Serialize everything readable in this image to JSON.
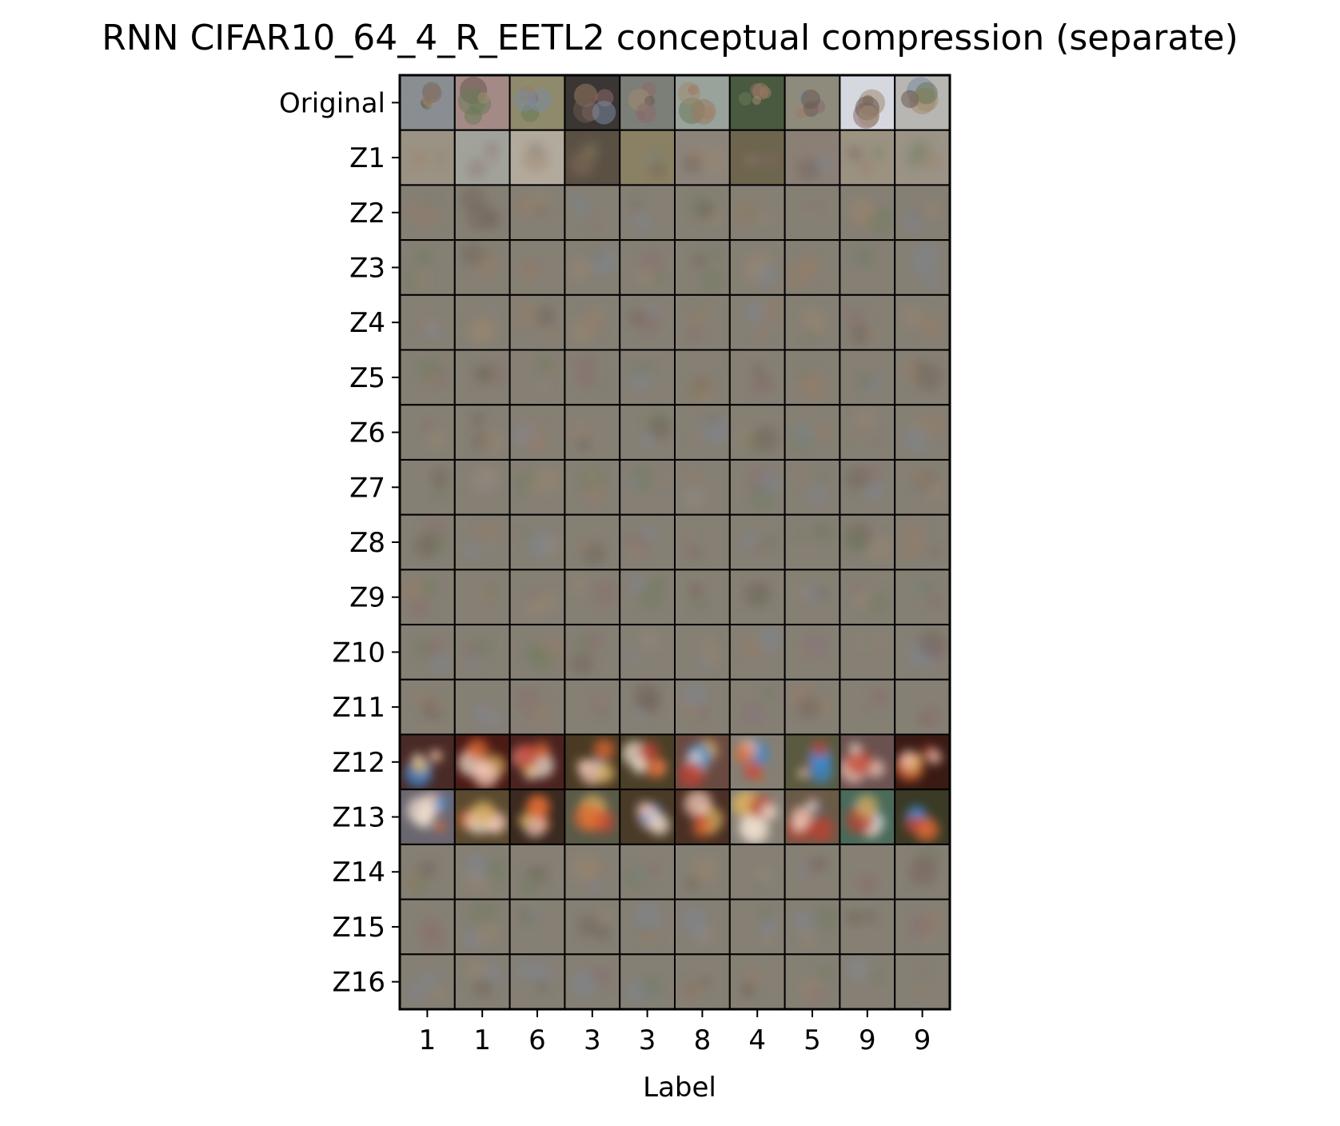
{
  "chart_data": {
    "type": "image_grid",
    "title": "RNN CIFAR10_64_4_R_EETL2 conceptual compression (separate)",
    "xlabel": "Label",
    "ylabel": "",
    "x_tick_labels": [
      "1",
      "1",
      "6",
      "3",
      "3",
      "8",
      "4",
      "5",
      "9",
      "9"
    ],
    "y_tick_labels": [
      "Original",
      "Z1",
      "Z2",
      "Z3",
      "Z4",
      "Z5",
      "Z6",
      "Z7",
      "Z8",
      "Z9",
      "Z10",
      "Z11",
      "Z12",
      "Z13",
      "Z14",
      "Z15",
      "Z16"
    ],
    "grid": false,
    "legend": "none",
    "cell_tones": {
      "original": [
        "#8a8e92",
        "#a48a86",
        "#8f8a6c",
        "#3a3634",
        "#7c7e78",
        "#9aa29c",
        "#4a5a40",
        "#8e8a7c",
        "#d6d8e0",
        "#b8b6b2"
      ],
      "blurred_base": "#857f74",
      "z1": [
        "#9a9282",
        "#a1a39a",
        "#b2aa9c",
        "#5a5044",
        "#8a8064",
        "#8c847a",
        "#6e654e",
        "#8a8076",
        "#9b9282",
        "#9a9386"
      ],
      "bright_rows": [
        "Z12",
        "Z13"
      ],
      "z12": [
        "#4a2a26",
        "#4a1a14",
        "#4a2220",
        "#4a3a24",
        "#4a4028",
        "#6a4a40",
        "#857f74",
        "#5a5a40",
        "#6a5250",
        "#3a1a14"
      ],
      "z13": [
        "#6a6670",
        "#5a4a30",
        "#3a2a20",
        "#5a5a48",
        "#4a3a28",
        "#4a3024",
        "#857f74",
        "#6a5a48",
        "#4a6a5a",
        "#3a3a26"
      ]
    }
  }
}
